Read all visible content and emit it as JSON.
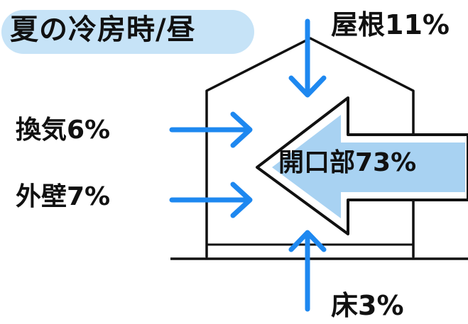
{
  "title": "夏の冷房時/昼",
  "labels": {
    "roof": "屋根11%",
    "ventilation": "換気6%",
    "outer_wall": "外壁7%",
    "opening": "開口部73%",
    "floor": "床3%"
  },
  "colors": {
    "title_background": "#c6e3f7",
    "arrow_blue": "#1e88f0",
    "big_arrow_fill": "#a8d2f2",
    "outline": "#111111"
  }
}
